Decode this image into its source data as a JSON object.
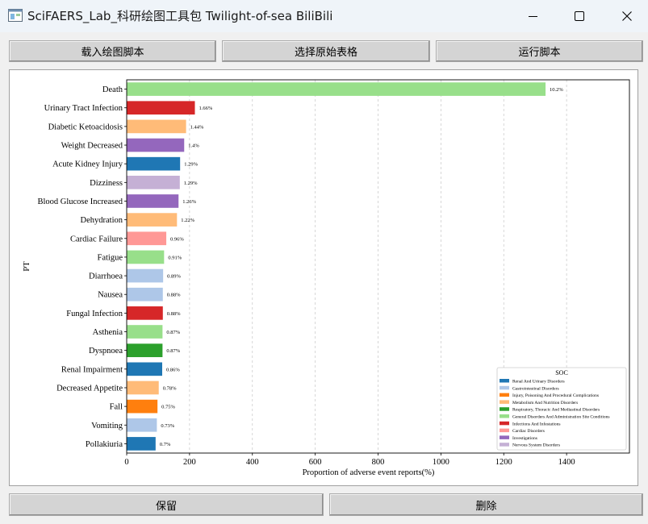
{
  "window": {
    "title": "SciFAERS_Lab_科研绘图工具包 Twilight-of-sea BiliBili",
    "icon": "app-icon",
    "controls": [
      "minimize-icon",
      "maximize-icon",
      "close-icon"
    ]
  },
  "toolbar": {
    "load_script": "载入绘图脚本",
    "select_table": "选择原始表格",
    "run_script": "运行脚本"
  },
  "footer": {
    "keep": "保留",
    "delete": "删除"
  },
  "chart_data": {
    "type": "bar",
    "orientation": "horizontal",
    "xlabel": "Proportion of adverse event reports(%)",
    "ylabel": "PT",
    "xlim": [
      0,
      1600
    ],
    "xticks": [
      0,
      200,
      400,
      600,
      800,
      1000,
      1200,
      1400
    ],
    "grid": "vertical dashed",
    "categories": [
      "Death",
      "Urinary Tract Infection",
      "Diabetic Ketoacidosis",
      "Weight Decreased",
      "Acute Kidney Injury",
      "Dizziness",
      "Blood Glucose Increased",
      "Dehydration",
      "Cardiac Failure",
      "Fatigue",
      "Diarrhoea",
      "Nausea",
      "Fungal Infection",
      "Asthenia",
      "Dyspnoea",
      "Renal Impairment",
      "Decreased Appetite",
      "Fall",
      "Vomiting",
      "Pollakiuria"
    ],
    "values": [
      1333,
      217,
      189,
      183,
      170,
      169,
      165,
      160,
      126,
      119,
      116,
      115,
      115,
      114,
      114,
      113,
      102,
      98,
      96,
      92
    ],
    "labels": [
      "10.2%",
      "1.66%",
      "1.44%",
      "1.4%",
      "1.29%",
      "1.29%",
      "1.26%",
      "1.22%",
      "0.96%",
      "0.91%",
      "0.89%",
      "0.88%",
      "0.88%",
      "0.87%",
      "0.87%",
      "0.86%",
      "0.78%",
      "0.75%",
      "0.73%",
      "0.7%"
    ],
    "soc": [
      "General Disorders And Administration Site Conditions",
      "Infections And Infestations",
      "Metabolism And Nutrition Disorders",
      "Investigations",
      "Renal And Urinary Disorders",
      "Nervous System Disorders",
      "Investigations",
      "Metabolism And Nutrition Disorders",
      "Cardiac Disorders",
      "General Disorders And Administration Site Conditions",
      "Gastrointestinal Disorders",
      "Gastrointestinal Disorders",
      "Infections And Infestations",
      "General Disorders And Administration Site Conditions",
      "Respiratory, Thoracic And Mediastinal Disorders",
      "Renal And Urinary Disorders",
      "Metabolism And Nutrition Disorders",
      "Injury, Poisoning And Procedural Complications",
      "Gastrointestinal Disorders",
      "Renal And Urinary Disorders"
    ],
    "legend": {
      "title": "SOC",
      "placement": "lower-right",
      "entries": [
        {
          "name": "Renal And Urinary Disorders",
          "color": "#1f77b4"
        },
        {
          "name": "Gastrointestinal Disorders",
          "color": "#aec7e8"
        },
        {
          "name": "Injury, Poisoning And Procedural Complications",
          "color": "#ff7f0e"
        },
        {
          "name": "Metabolism And Nutrition Disorders",
          "color": "#ffbb78"
        },
        {
          "name": "Respiratory, Thoracic And Mediastinal Disorders",
          "color": "#2ca02c"
        },
        {
          "name": "General Disorders And Administration Site Conditions",
          "color": "#98df8a"
        },
        {
          "name": "Infections And Infestations",
          "color": "#d62728"
        },
        {
          "name": "Cardiac Disorders",
          "color": "#ff9896"
        },
        {
          "name": "Investigations",
          "color": "#9467bd"
        },
        {
          "name": "Nervous System Disorders",
          "color": "#c5b0d5"
        }
      ]
    }
  }
}
